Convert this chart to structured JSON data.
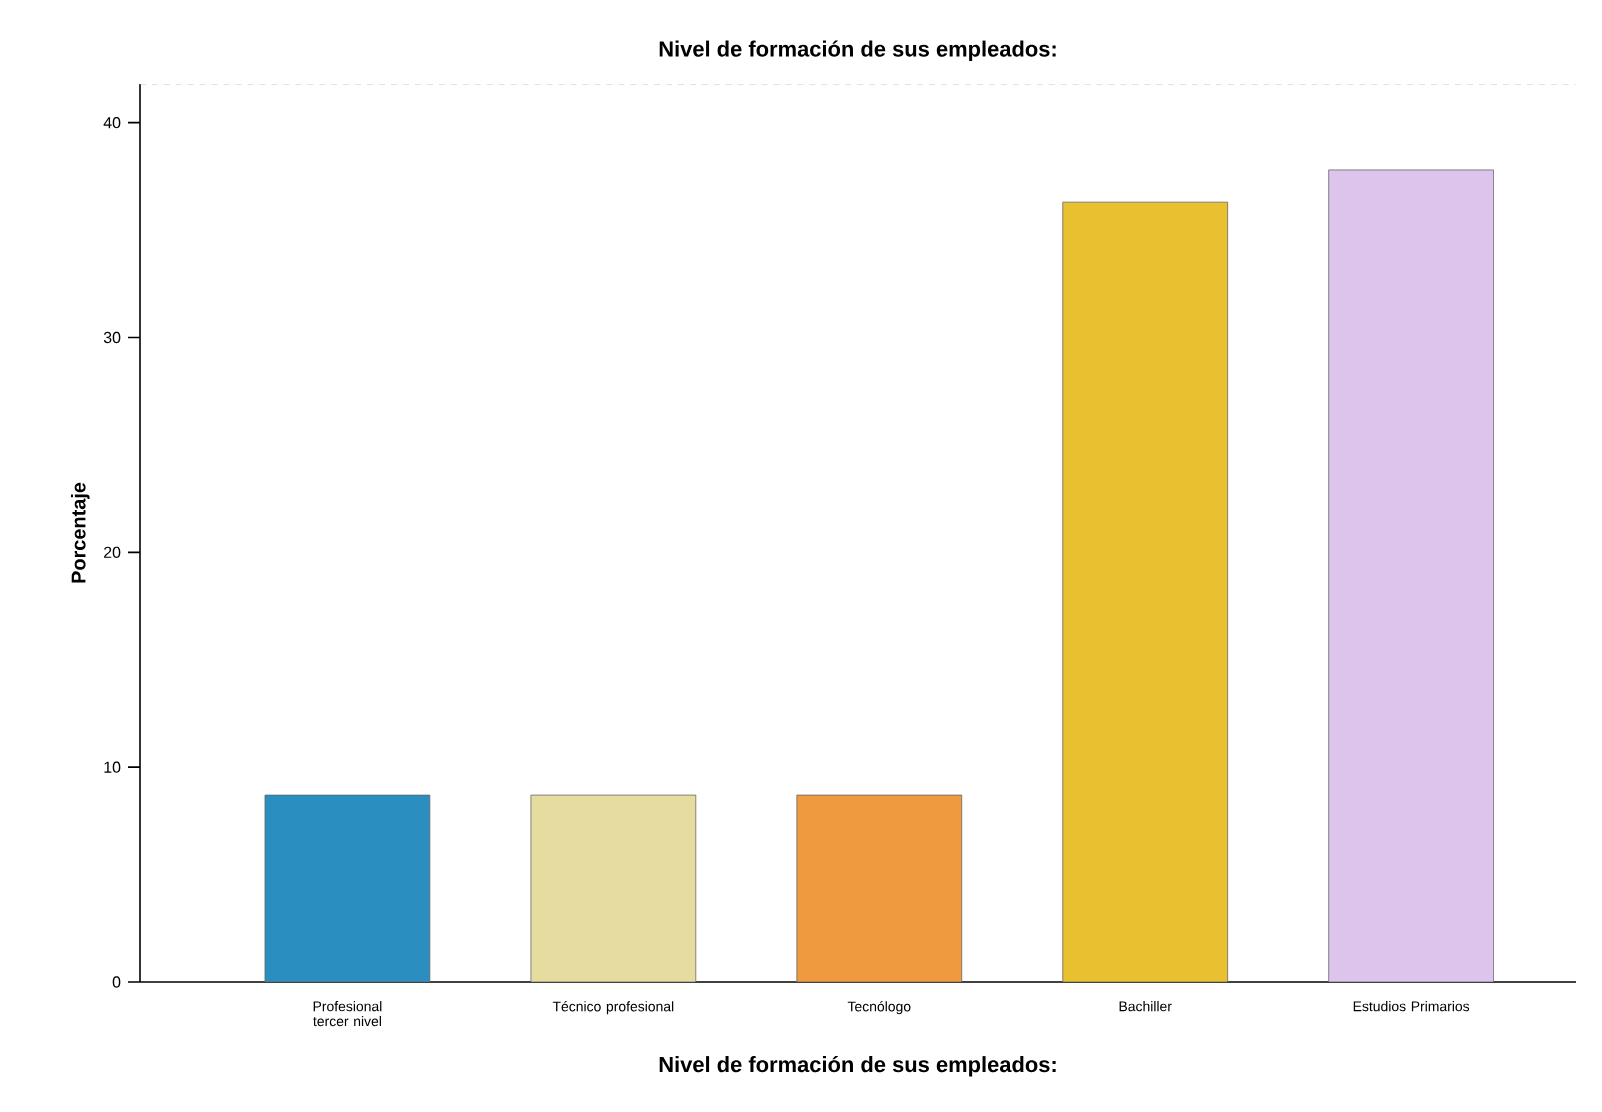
{
  "chart_data": {
    "type": "bar",
    "title": "Nivel de formación de sus empleados:",
    "xlabel": "Nivel de formación de sus empleados:",
    "ylabel": "Porcentaje",
    "categories": [
      "Profesional tercer nivel",
      "Técnico profesional",
      "Tecnólogo",
      "Bachiller",
      "Estudios Primarios"
    ],
    "values": [
      8.7,
      8.7,
      8.7,
      36.3,
      37.8
    ],
    "colors": [
      "#2a8fc0",
      "#e6dca0",
      "#f09a40",
      "#e8c030",
      "#dcc4ec"
    ],
    "ylim": [
      0,
      41.8
    ],
    "yticks": [
      0,
      10,
      20,
      30,
      40
    ],
    "grid": false
  }
}
